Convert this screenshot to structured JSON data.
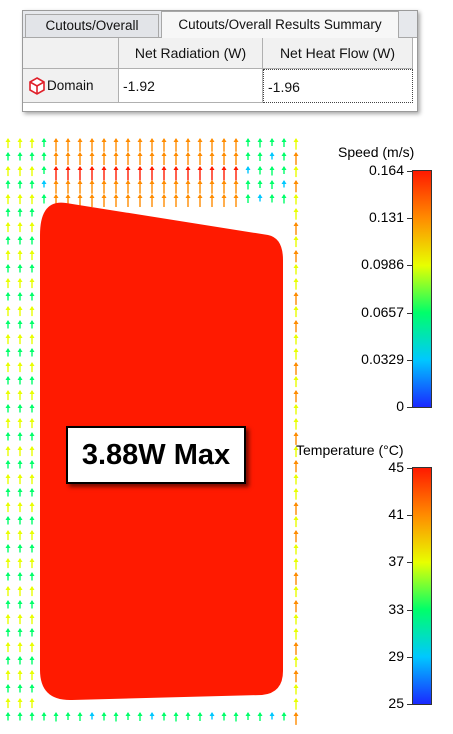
{
  "results_panel": {
    "tabs": [
      {
        "label": "Cutouts/Overall"
      },
      {
        "label": "Cutouts/Overall Results Summary"
      }
    ],
    "columns": [
      "Net Radiation (W)",
      "Net Heat Flow (W)"
    ],
    "rows": [
      {
        "name": "Domain",
        "net_radiation": "-1.92",
        "net_heat_flow": "-1.96"
      }
    ]
  },
  "annotation": {
    "text": "3.88W Max"
  },
  "legends": [
    {
      "title": "Speed (m/s)",
      "ticks": [
        "0.164",
        "0.131",
        "0.0986",
        "0.0657",
        "0.0329",
        "0"
      ]
    },
    {
      "title": "Temperature (°C)",
      "ticks": [
        "45",
        "41",
        "37",
        "33",
        "29",
        "25"
      ]
    }
  ],
  "colors": {
    "component": "#ff1a00",
    "colormap": [
      "#1a28ff",
      "#00c8ff",
      "#00ff6a",
      "#e8ff00",
      "#ff8c00",
      "#ff1a00"
    ]
  },
  "icons": {
    "domain": "domain-cube-icon"
  }
}
